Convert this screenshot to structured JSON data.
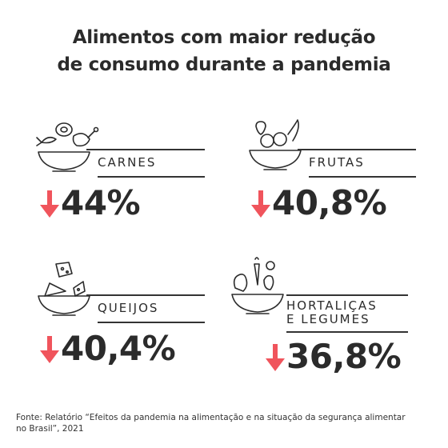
{
  "title_line1": "Alimentos com maior redução",
  "title_line2": "de consumo durante a pandemia",
  "cards": [
    {
      "label": "CARNES",
      "value": "44%",
      "icon": "meat-icon"
    },
    {
      "label": "FRUTAS",
      "value": "40,8%",
      "icon": "fruit-bowl-icon"
    },
    {
      "label": "QUEIJOS",
      "value": "40,4%",
      "icon": "cheese-bowl-icon"
    },
    {
      "label_line1": "HORTALIÇAS",
      "label_line2": "E LEGUMES",
      "value": "36,8%",
      "icon": "vegetables-icon"
    }
  ],
  "arrow_color": "#f0545c",
  "source_line1": "Fonte: Relatório “Efeitos da pandemia na alimentação e na situação da segurança alimentar",
  "source_line2": "no Brasil”, 2021"
}
